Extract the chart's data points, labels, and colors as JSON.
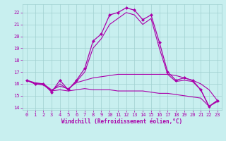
{
  "xlabel": "Windchill (Refroidissement éolien,°C)",
  "ylabel": "",
  "xlim": [
    -0.5,
    23.5
  ],
  "ylim": [
    13.8,
    22.7
  ],
  "yticks": [
    14,
    15,
    16,
    17,
    18,
    19,
    20,
    21,
    22
  ],
  "xticks": [
    0,
    1,
    2,
    3,
    4,
    5,
    6,
    7,
    8,
    9,
    10,
    11,
    12,
    13,
    14,
    15,
    16,
    17,
    18,
    19,
    20,
    21,
    22,
    23
  ],
  "bg_color": "#c8efef",
  "grid_color": "#a0d0d0",
  "line_color": "#aa00aa",
  "lines": [
    {
      "x": [
        0,
        1,
        2,
        3,
        4,
        5,
        6,
        7,
        8,
        9,
        10,
        11,
        12,
        13,
        14,
        15,
        16,
        17,
        18,
        19,
        20,
        21,
        22,
        23
      ],
      "y": [
        16.3,
        16.0,
        16.0,
        15.3,
        16.3,
        15.5,
        16.3,
        17.3,
        19.6,
        20.2,
        21.8,
        22.0,
        22.4,
        22.2,
        21.4,
        21.8,
        19.5,
        17.0,
        16.3,
        16.5,
        16.3,
        15.5,
        14.1,
        14.6
      ],
      "marker": "D",
      "markersize": 2.0,
      "linewidth": 0.9
    },
    {
      "x": [
        0,
        1,
        2,
        3,
        4,
        5,
        6,
        7,
        8,
        9,
        10,
        11,
        12,
        13,
        14,
        15,
        16,
        17,
        18,
        19,
        20,
        21,
        22,
        23
      ],
      "y": [
        16.3,
        16.0,
        16.0,
        15.4,
        16.0,
        15.5,
        16.2,
        17.0,
        19.0,
        19.8,
        21.0,
        21.5,
        22.0,
        21.8,
        21.0,
        21.5,
        19.0,
        16.8,
        16.2,
        16.3,
        16.2,
        15.5,
        14.1,
        14.6
      ],
      "marker": null,
      "markersize": 0,
      "linewidth": 0.8
    },
    {
      "x": [
        0,
        1,
        2,
        3,
        4,
        5,
        6,
        7,
        8,
        9,
        10,
        11,
        12,
        13,
        14,
        15,
        16,
        17,
        18,
        19,
        20,
        21,
        22,
        23
      ],
      "y": [
        16.3,
        16.1,
        16.0,
        15.5,
        15.8,
        15.6,
        16.1,
        16.3,
        16.5,
        16.6,
        16.7,
        16.8,
        16.8,
        16.8,
        16.8,
        16.8,
        16.8,
        16.8,
        16.7,
        16.5,
        16.3,
        16.0,
        15.5,
        14.6
      ],
      "marker": null,
      "markersize": 0,
      "linewidth": 0.8
    },
    {
      "x": [
        0,
        1,
        2,
        3,
        4,
        5,
        6,
        7,
        8,
        9,
        10,
        11,
        12,
        13,
        14,
        15,
        16,
        17,
        18,
        19,
        20,
        21,
        22,
        23
      ],
      "y": [
        16.3,
        16.0,
        15.9,
        15.4,
        15.5,
        15.4,
        15.5,
        15.6,
        15.5,
        15.5,
        15.5,
        15.4,
        15.4,
        15.4,
        15.4,
        15.3,
        15.2,
        15.2,
        15.1,
        15.0,
        14.9,
        14.8,
        14.1,
        14.5
      ],
      "marker": null,
      "markersize": 0,
      "linewidth": 0.8
    }
  ],
  "tick_labelsize": 5,
  "xlabel_fontsize": 5.5
}
